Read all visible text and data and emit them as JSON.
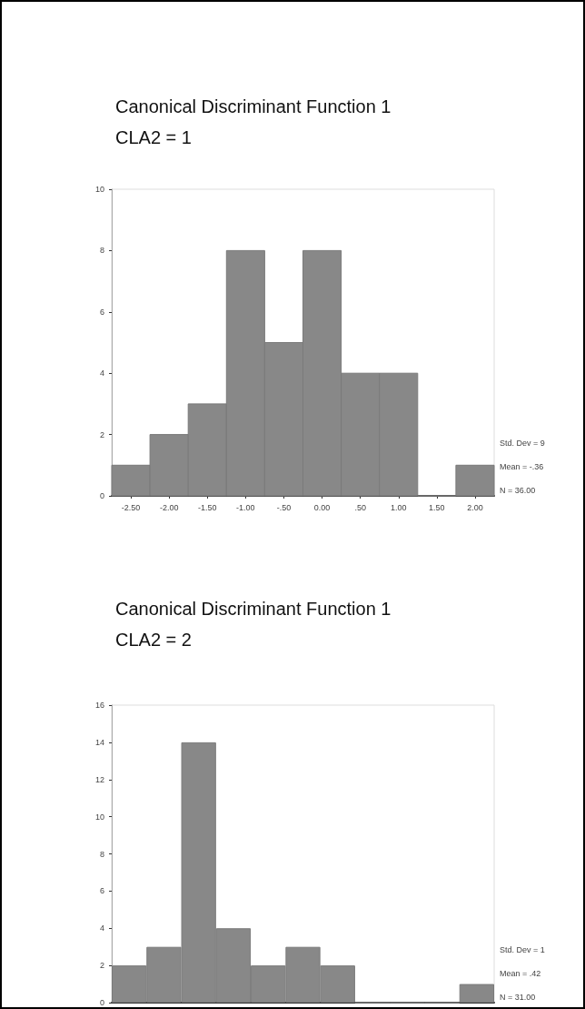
{
  "chart_data": [
    {
      "type": "histogram",
      "title": "Canonical Discriminant Function 1",
      "subtitle": "CLA2 = 1",
      "bins": [
        -2.75,
        -2.25,
        -1.75,
        -1.25,
        -0.75,
        -0.25,
        0.25,
        0.75,
        1.25,
        1.75,
        2.25
      ],
      "values": [
        1,
        2,
        3,
        8,
        5,
        8,
        4,
        4,
        0,
        1
      ],
      "color": "#888888",
      "xlim": [
        -2.75,
        2.25
      ],
      "xticks": [
        {
          "value": -2.5,
          "label": "-2.50"
        },
        {
          "value": -2,
          "label": "-2.00"
        },
        {
          "value": -1.5,
          "label": "-1.50"
        },
        {
          "value": -1,
          "label": "-1.00"
        },
        {
          "value": -0.5,
          "label": "-.50"
        },
        {
          "value": 0,
          "label": "0.00"
        },
        {
          "value": 0.5,
          "label": ".50"
        },
        {
          "value": 1,
          "label": "1.00"
        },
        {
          "value": 1.5,
          "label": "1.50"
        },
        {
          "value": 2,
          "label": "2.00"
        }
      ],
      "ylim": [
        0,
        10
      ],
      "yticks": [
        0,
        2,
        4,
        6,
        8,
        10
      ],
      "grid": false,
      "annotations": [
        "Std. Dev = 9",
        "Mean = -.36",
        "N = 36.00"
      ]
    },
    {
      "type": "bar",
      "title": "Canonical Discriminant Function 1",
      "subtitle": "CLA2 = 2",
      "categories": [
        null,
        null,
        null,
        null,
        null,
        null,
        null,
        null,
        null,
        null,
        null
      ],
      "values": [
        2,
        3,
        14,
        4,
        2,
        3,
        2,
        0,
        0,
        0,
        1
      ],
      "color": "#888888",
      "ylim": [
        0,
        16
      ],
      "yticks": [
        0,
        2,
        4,
        6,
        8,
        10,
        12,
        14,
        16
      ],
      "grid": false,
      "tick_labels": "y",
      "annotations": [
        "Std. Dev = 1",
        "Mean = .42",
        "N = 31.00"
      ]
    }
  ]
}
